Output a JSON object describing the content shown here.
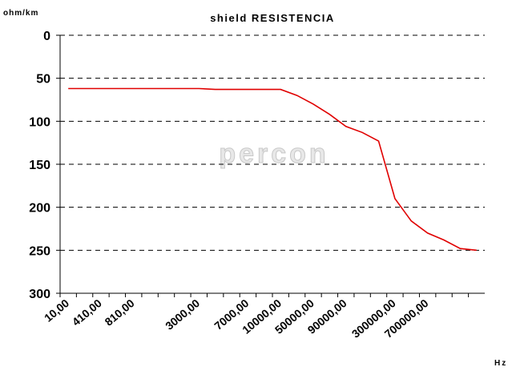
{
  "chart_data": {
    "type": "line",
    "title": "shield RESISTENCIA",
    "y_label": "ohm/km",
    "x_label": "Hz",
    "watermark": "percon",
    "categories": [
      "10,00",
      null,
      "410,00",
      null,
      "810,00",
      null,
      null,
      null,
      "3000,00",
      null,
      null,
      "7000,00",
      null,
      "10000,00",
      null,
      "50000,00",
      null,
      "90000,00",
      null,
      null,
      "300000,00",
      null,
      "700000,00",
      null,
      null,
      null
    ],
    "series": [
      {
        "name": "shield RESISTENCIA",
        "color": "#e00000",
        "values": [
          62,
          62,
          62,
          62,
          62,
          62,
          62,
          62,
          62,
          63,
          63,
          63,
          63,
          63,
          70,
          80,
          92,
          106,
          113,
          123,
          190,
          216,
          230,
          238,
          248,
          250
        ]
      }
    ],
    "ylim": [
      0,
      300
    ],
    "yticks": [
      0,
      50,
      100,
      150,
      200,
      250,
      300
    ],
    "y_inverted": true,
    "grid": true
  }
}
